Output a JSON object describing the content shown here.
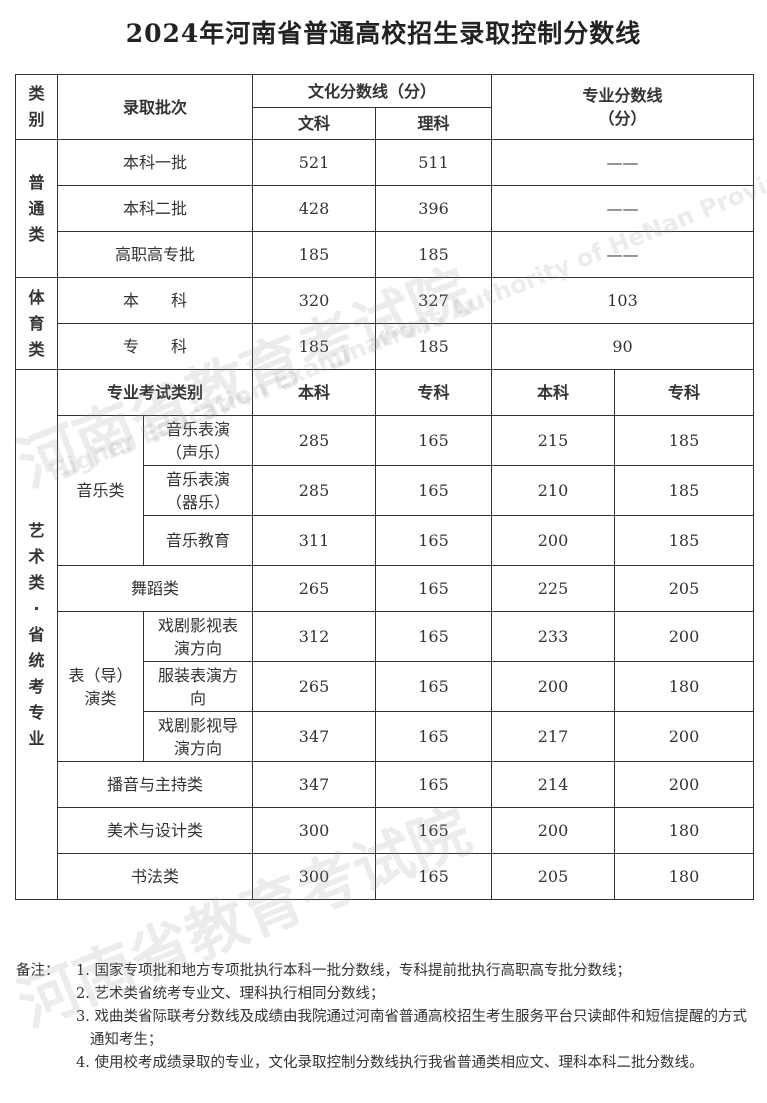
{
  "title": "2024年河南省普通高校招生录取控制分数线",
  "header": {
    "category": "类别",
    "batch": "录取批次",
    "culture": "文化分数线（分）",
    "wen": "文科",
    "li": "理科",
    "major": "专业分数线（分）"
  },
  "general": {
    "label": "普通类",
    "rows": [
      {
        "batch": "本科一批",
        "wen": "521",
        "li": "511",
        "major": "——"
      },
      {
        "batch": "本科二批",
        "wen": "428",
        "li": "396",
        "major": "——"
      },
      {
        "batch": "高职高专批",
        "wen": "185",
        "li": "185",
        "major": "——"
      }
    ]
  },
  "sports": {
    "label": "体育类",
    "rows": [
      {
        "batch": "本　　科",
        "wen": "320",
        "li": "327",
        "major": "103"
      },
      {
        "batch": "专　　科",
        "wen": "185",
        "li": "185",
        "major": "90"
      }
    ]
  },
  "art": {
    "label": "艺术类·省统考专业",
    "sub_header": {
      "type": "专业考试类别",
      "c_ben": "本科",
      "c_zhuan": "专科",
      "m_ben": "本科",
      "m_zhuan": "专科"
    },
    "music": {
      "label": "音乐类",
      "rows": [
        {
          "name": "音乐表演（声乐）",
          "c_ben": "285",
          "c_zhuan": "165",
          "m_ben": "215",
          "m_zhuan": "185"
        },
        {
          "name": "音乐表演（器乐）",
          "c_ben": "285",
          "c_zhuan": "165",
          "m_ben": "210",
          "m_zhuan": "185"
        },
        {
          "name": "音乐教育",
          "c_ben": "311",
          "c_zhuan": "165",
          "m_ben": "200",
          "m_zhuan": "185"
        }
      ]
    },
    "dance": {
      "name": "舞蹈类",
      "c_ben": "265",
      "c_zhuan": "165",
      "m_ben": "225",
      "m_zhuan": "205"
    },
    "drama": {
      "label": "表（导）演类",
      "rows": [
        {
          "name": "戏剧影视表演方向",
          "c_ben": "312",
          "c_zhuan": "165",
          "m_ben": "233",
          "m_zhuan": "200"
        },
        {
          "name": "服装表演方向",
          "c_ben": "265",
          "c_zhuan": "165",
          "m_ben": "200",
          "m_zhuan": "180"
        },
        {
          "name": "戏剧影视导演方向",
          "c_ben": "347",
          "c_zhuan": "165",
          "m_ben": "217",
          "m_zhuan": "200"
        }
      ]
    },
    "others": [
      {
        "name": "播音与主持类",
        "c_ben": "347",
        "c_zhuan": "165",
        "m_ben": "214",
        "m_zhuan": "200"
      },
      {
        "name": "美术与设计类",
        "c_ben": "300",
        "c_zhuan": "165",
        "m_ben": "200",
        "m_zhuan": "180"
      },
      {
        "name": "书法类",
        "c_ben": "300",
        "c_zhuan": "165",
        "m_ben": "205",
        "m_zhuan": "180"
      }
    ]
  },
  "notes": {
    "label": "备注：",
    "items": [
      "1. 国家专项批和地方专项批执行本科一批分数线，专科提前批执行高职高专批分数线；",
      "2. 艺术类省统考专业文、理科执行相同分数线；",
      "3. 戏曲类省际联考分数线及成绩由我院通过河南省普通高校招生考生服务平台只读邮件和短信提醒的方式通知考生；",
      "4. 使用校考成绩录取的专业，文化录取控制分数线执行我省普通类相应文、理科本科二批分数线。"
    ]
  },
  "watermark": {
    "cn": "河南省教育考试院",
    "en": "Higher Education Examinations Authority of HeNan Province"
  }
}
